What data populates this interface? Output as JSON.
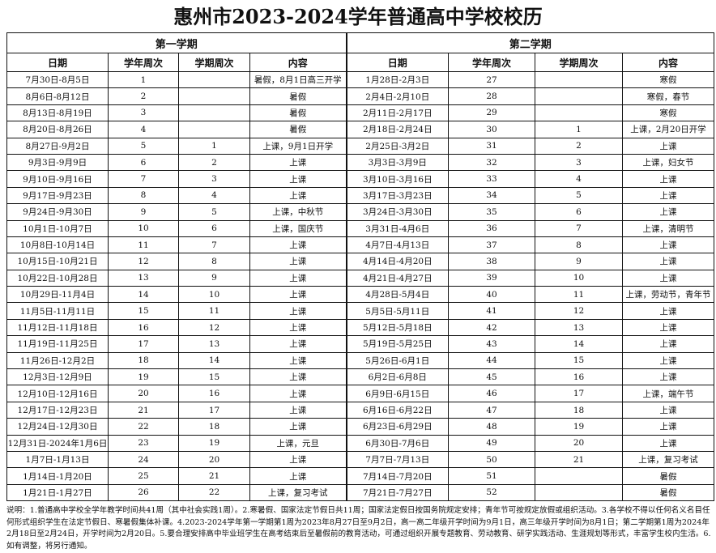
{
  "title": "惠州市2023-2024学年普通高中学校校历",
  "semesters": [
    "第一学期",
    "第二学期"
  ],
  "columns": [
    "日期",
    "学年周次",
    "学期周次",
    "内容"
  ],
  "first_semester": [
    [
      "7月30日-8月5日",
      "1",
      "",
      "暑假，8月1日高三开学"
    ],
    [
      "8月6日-8月12日",
      "2",
      "",
      "暑假"
    ],
    [
      "8月13日-8月19日",
      "3",
      "",
      "暑假"
    ],
    [
      "8月20日-8月26日",
      "4",
      "",
      "暑假"
    ],
    [
      "8月27日-9月2日",
      "5",
      "1",
      "上课，9月1日开学"
    ],
    [
      "9月3日-9月9日",
      "6",
      "2",
      "上课"
    ],
    [
      "9月10日-9月16日",
      "7",
      "3",
      "上课"
    ],
    [
      "9月17日-9月23日",
      "8",
      "4",
      "上课"
    ],
    [
      "9月24日-9月30日",
      "9",
      "5",
      "上课，中秋节"
    ],
    [
      "10月1日-10月7日",
      "10",
      "6",
      "上课，国庆节"
    ],
    [
      "10月8日-10月14日",
      "11",
      "7",
      "上课"
    ],
    [
      "10月15日-10月21日",
      "12",
      "8",
      "上课"
    ],
    [
      "10月22日-10月28日",
      "13",
      "9",
      "上课"
    ],
    [
      "10月29日-11月4日",
      "14",
      "10",
      "上课"
    ],
    [
      "11月5日-11月11日",
      "15",
      "11",
      "上课"
    ],
    [
      "11月12日-11月18日",
      "16",
      "12",
      "上课"
    ],
    [
      "11月19日-11月25日",
      "17",
      "13",
      "上课"
    ],
    [
      "11月26日-12月2日",
      "18",
      "14",
      "上课"
    ],
    [
      "12月3日-12月9日",
      "19",
      "15",
      "上课"
    ],
    [
      "12月10日-12月16日",
      "20",
      "16",
      "上课"
    ],
    [
      "12月17日-12月23日",
      "21",
      "17",
      "上课"
    ],
    [
      "12月24日-12月30日",
      "22",
      "18",
      "上课"
    ],
    [
      "12月31日-2024年1月6日",
      "23",
      "19",
      "上课，元旦"
    ],
    [
      "1月7日-1月13日",
      "24",
      "20",
      "上课"
    ],
    [
      "1月14日-1月20日",
      "25",
      "21",
      "上课"
    ],
    [
      "1月21日-1月27日",
      "26",
      "22",
      "上课，复习考试"
    ]
  ],
  "second_semester": [
    [
      "1月28日-2月3日",
      "27",
      "",
      "寒假"
    ],
    [
      "2月4日-2月10日",
      "28",
      "",
      "寒假，春节"
    ],
    [
      "2月11日-2月17日",
      "29",
      "",
      "寒假"
    ],
    [
      "2月18日-2月24日",
      "30",
      "1",
      "上课，2月20日开学"
    ],
    [
      "2月25日-3月2日",
      "31",
      "2",
      "上课"
    ],
    [
      "3月3日-3月9日",
      "32",
      "3",
      "上课，妇女节"
    ],
    [
      "3月10日-3月16日",
      "33",
      "4",
      "上课"
    ],
    [
      "3月17日-3月23日",
      "34",
      "5",
      "上课"
    ],
    [
      "3月24日-3月30日",
      "35",
      "6",
      "上课"
    ],
    [
      "3月31日-4月6日",
      "36",
      "7",
      "上课，清明节"
    ],
    [
      "4月7日-4月13日",
      "37",
      "8",
      "上课"
    ],
    [
      "4月14日-4月20日",
      "38",
      "9",
      "上课"
    ],
    [
      "4月21日-4月27日",
      "39",
      "10",
      "上课"
    ],
    [
      "4月28日-5月4日",
      "40",
      "11",
      "上课，劳动节，青年节"
    ],
    [
      "5月5日-5月11日",
      "41",
      "12",
      "上课"
    ],
    [
      "5月12日-5月18日",
      "42",
      "13",
      "上课"
    ],
    [
      "5月19日-5月25日",
      "43",
      "14",
      "上课"
    ],
    [
      "5月26日-6月1日",
      "44",
      "15",
      "上课"
    ],
    [
      "6月2日-6月8日",
      "45",
      "16",
      "上课"
    ],
    [
      "6月9日-6月15日",
      "46",
      "17",
      "上课，端午节"
    ],
    [
      "6月16日-6月22日",
      "47",
      "18",
      "上课"
    ],
    [
      "6月23日-6月29日",
      "48",
      "19",
      "上课"
    ],
    [
      "6月30日-7月6日",
      "49",
      "20",
      "上课"
    ],
    [
      "7月7日-7月13日",
      "50",
      "21",
      "上课，复习考试"
    ],
    [
      "7月14日-7月20日",
      "51",
      "",
      "暑假"
    ],
    [
      "7月21日-7月27日",
      "52",
      "",
      "暑假"
    ]
  ],
  "notes": "说明：1.普通高中学校全学年教学时间共41周（其中社会实践1周）。2.寒暑假、国家法定节假日共11周；国家法定假日按国务院规定安排；青年节可按规定放假或组织活动。3.各学校不得以任何名义名目任何形式组织学生在法定节假日、寒暑假集体补课。4.2023-2024学年第一学期第1周为2023年8月27日至9月2日，高一高二年级开学时间为9月1日，高三年级开学时间为8月1日；第二学期第1周为2024年2月18日至2月24日，开学时间为2月20日。5.要合理安排高中毕业班学生在高考结束后至暑假前的教育活动，可通过组织开展专题教育、劳动教育、研学实践活动、生涯规划等形式，丰富学生校内生活。6.如有调整，将另行通知。"
}
